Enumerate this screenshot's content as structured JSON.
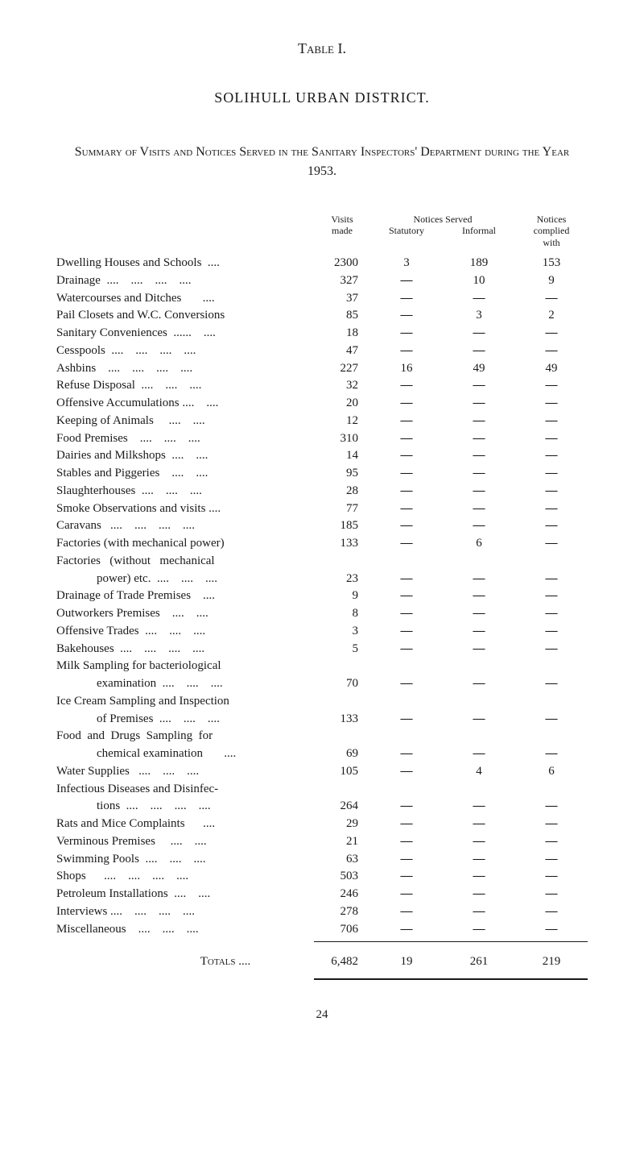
{
  "page": {
    "table_label": "Table I.",
    "district_title": "SOLIHULL URBAN DISTRICT.",
    "summary_title": "Summary of Visits and Notices Served in the Sanitary Inspectors' Department during the Year 1953.",
    "page_number": "24"
  },
  "headers": {
    "visits_line1": "Visits",
    "visits_line2": "made",
    "notices_served": "Notices Served",
    "statutory": "Statutory",
    "informal": "Informal",
    "complied_line1": "Notices",
    "complied_line2": "complied",
    "complied_line3": "with"
  },
  "rows": [
    {
      "label": "Dwelling Houses and Schools  ....",
      "visits": "2300",
      "statutory": "3",
      "informal": "189",
      "complied": "153"
    },
    {
      "label": "Drainage  ....    ....    ....    ....",
      "visits": "327",
      "statutory": "—",
      "informal": "10",
      "complied": "9"
    },
    {
      "label": "Watercourses and Ditches       ....",
      "visits": "37",
      "statutory": "—",
      "informal": "—",
      "complied": "—"
    },
    {
      "label": "Pail Closets and W.C. Conversions",
      "visits": "85",
      "statutory": "—",
      "informal": "3",
      "complied": "2"
    },
    {
      "label": "Sanitary Conveniences  ......    ....",
      "visits": "18",
      "statutory": "—",
      "informal": "—",
      "complied": "—"
    },
    {
      "label": "Cesspools  ....    ....    ....    ....",
      "visits": "47",
      "statutory": "—",
      "informal": "—",
      "complied": "—"
    },
    {
      "label": "Ashbins    ....    ....    ....    ....",
      "visits": "227",
      "statutory": "16",
      "informal": "49",
      "complied": "49"
    },
    {
      "label": "Refuse Disposal  ....    ....    ....",
      "visits": "32",
      "statutory": "—",
      "informal": "—",
      "complied": "—"
    },
    {
      "label": "Offensive Accumulations ....    ....",
      "visits": "20",
      "statutory": "—",
      "informal": "—",
      "complied": "—"
    },
    {
      "label": "Keeping of Animals     ....    ....",
      "visits": "12",
      "statutory": "—",
      "informal": "—",
      "complied": "—"
    },
    {
      "label": "Food Premises    ....    ....    ....",
      "visits": "310",
      "statutory": "—",
      "informal": "—",
      "complied": "—"
    },
    {
      "label": "Dairies and Milkshops  ....    ....",
      "visits": "14",
      "statutory": "—",
      "informal": "—",
      "complied": "—"
    },
    {
      "label": "Stables and Piggeries    ....    ....",
      "visits": "95",
      "statutory": "—",
      "informal": "—",
      "complied": "—"
    },
    {
      "label": "Slaughterhouses  ....    ....    ....",
      "visits": "28",
      "statutory": "—",
      "informal": "—",
      "complied": "—"
    },
    {
      "label": "Smoke Observations and visits ....",
      "visits": "77",
      "statutory": "—",
      "informal": "—",
      "complied": "—"
    },
    {
      "label": "Caravans   ....    ....    ....    ....",
      "visits": "185",
      "statutory": "—",
      "informal": "—",
      "complied": "—"
    },
    {
      "label": "Factories (with mechanical power)",
      "visits": "133",
      "statutory": "—",
      "informal": "6",
      "complied": "—"
    },
    {
      "label": "Factories   (without   mechanical",
      "visits": "",
      "statutory": "",
      "informal": "",
      "complied": ""
    },
    {
      "label": "power) etc.  ....    ....    ....",
      "indent": true,
      "visits": "23",
      "statutory": "—",
      "informal": "—",
      "complied": "—"
    },
    {
      "label": "Drainage of Trade Premises    ....",
      "visits": "9",
      "statutory": "—",
      "informal": "—",
      "complied": "—"
    },
    {
      "label": "Outworkers Premises    ....    ....",
      "visits": "8",
      "statutory": "—",
      "informal": "—",
      "complied": "—"
    },
    {
      "label": "Offensive Trades  ....    ....    ....",
      "visits": "3",
      "statutory": "—",
      "informal": "—",
      "complied": "—"
    },
    {
      "label": "Bakehouses  ....    ....    ....    ....",
      "visits": "5",
      "statutory": "—",
      "informal": "—",
      "complied": "—"
    },
    {
      "label": "Milk Sampling for bacteriological",
      "visits": "",
      "statutory": "",
      "informal": "",
      "complied": ""
    },
    {
      "label": "examination  ....    ....    ....",
      "indent": true,
      "visits": "70",
      "statutory": "—",
      "informal": "—",
      "complied": "—"
    },
    {
      "label": "Ice Cream Sampling and Inspection",
      "visits": "",
      "statutory": "",
      "informal": "",
      "complied": ""
    },
    {
      "label": "of Premises  ....    ....    ....",
      "indent": true,
      "visits": "133",
      "statutory": "—",
      "informal": "—",
      "complied": "—"
    },
    {
      "label": "Food  and  Drugs  Sampling  for",
      "visits": "",
      "statutory": "",
      "informal": "",
      "complied": ""
    },
    {
      "label": "chemical examination       ....",
      "indent": true,
      "visits": "69",
      "statutory": "—",
      "informal": "—",
      "complied": "—"
    },
    {
      "label": "Water Supplies   ....    ....    ....",
      "visits": "105",
      "statutory": "—",
      "informal": "4",
      "complied": "6"
    },
    {
      "label": "Infectious Diseases and Disinfec-",
      "visits": "",
      "statutory": "",
      "informal": "",
      "complied": ""
    },
    {
      "label": "tions  ....    ....    ....    ....",
      "indent": true,
      "visits": "264",
      "statutory": "—",
      "informal": "—",
      "complied": "—"
    },
    {
      "label": "Rats and Mice Complaints      ....",
      "visits": "29",
      "statutory": "—",
      "informal": "—",
      "complied": "—"
    },
    {
      "label": "Verminous Premises     ....    ....",
      "visits": "21",
      "statutory": "—",
      "informal": "—",
      "complied": "—"
    },
    {
      "label": "Swimming Pools  ....    ....    ....",
      "visits": "63",
      "statutory": "—",
      "informal": "—",
      "complied": "—"
    },
    {
      "label": "Shops      ....    ....    ....    ....",
      "visits": "503",
      "statutory": "—",
      "informal": "—",
      "complied": "—"
    },
    {
      "label": "Petroleum Installations  ....    ....",
      "visits": "246",
      "statutory": "—",
      "informal": "—",
      "complied": "—"
    },
    {
      "label": "Interviews ....    ....    ....    ....",
      "visits": "278",
      "statutory": "—",
      "informal": "—",
      "complied": "—"
    },
    {
      "label": "Miscellaneous    ....    ....    ....",
      "visits": "706",
      "statutory": "—",
      "informal": "—",
      "complied": "—"
    }
  ],
  "totals": {
    "label": "Totals      ....",
    "visits": "6,482",
    "statutory": "19",
    "informal": "261",
    "complied": "219"
  },
  "styling": {
    "background_color": "#ffffff",
    "text_color": "#1a1a1a",
    "font_family": "Georgia, Times New Roman, serif",
    "body_fontsize": 15,
    "header_fontsize": 12,
    "title_fontsize": 18
  }
}
